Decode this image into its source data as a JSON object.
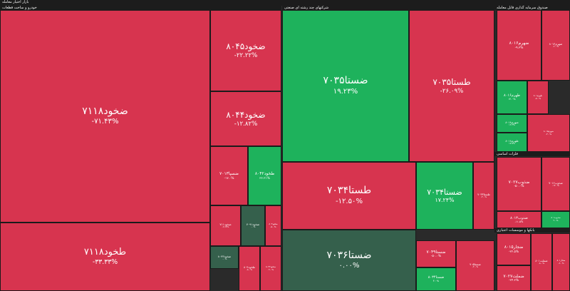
{
  "header": {
    "title": "بازار اختیار معامله"
  },
  "colors": {
    "down": "#d7344f",
    "up": "#1eb25c",
    "flat": "#35604c"
  },
  "groups": [
    {
      "title": "خودرو و ساخت قطعات",
      "tiles": [
        {
          "label": "ضخود۷۱۱۸",
          "change": "-۷۱.۴۳%",
          "color": "down"
        },
        {
          "label": "طخود۷۱۱۸",
          "change": "-۳۳.۳۳%",
          "color": "down"
        },
        {
          "label": "ضخود۸۰۴۵",
          "change": "-۲۲.۲۲%",
          "color": "down"
        },
        {
          "label": "ضخود۸۰۴۴",
          "change": "-۱۲.۸۲%",
          "color": "down"
        },
        {
          "label": "ضسپا۷۰۱۳",
          "change": "-۱۷.۰%",
          "color": "down"
        },
        {
          "label": "طخود۸۰۴۲",
          "change": "۳۶.۲۱%",
          "color": "up"
        },
        {
          "label": "ضخود۷۱۱",
          "change": "-۶.۶۷%",
          "color": "down"
        },
        {
          "label": "ضخود۷۰۹۱",
          "change": "۰.۰%",
          "color": "flat"
        },
        {
          "label": "ضخود۸۰۳",
          "change": "-۵.۰%",
          "color": "down"
        },
        {
          "label": "ضخود۸۰۴۳",
          "change": "۰.۰%",
          "color": "flat"
        },
        {
          "label": "طخود۸۰۴",
          "change": "-۸.۰%",
          "color": "down"
        },
        {
          "label": "ضخود۸۰۴۲",
          "change": "-۹.۰%",
          "color": "down"
        }
      ]
    },
    {
      "title": "شرکتهای چند رشته ای صنعتی",
      "tiles": [
        {
          "label": "ضستا۷۰۳۵",
          "change": "۱۹.۲۳%",
          "color": "up"
        },
        {
          "label": "طستا۷۰۳۵",
          "change": "-۲۶.۰۹%",
          "color": "down"
        },
        {
          "label": "طستا۷۰۳۴",
          "change": "-۱۲.۵۰%",
          "color": "down"
        },
        {
          "label": "ضستا۷۰۳۴",
          "change": "۱۷.۲۴%",
          "color": "up"
        },
        {
          "label": "طستا۷۰۳۳",
          "change": "-۳.۰%",
          "color": "down"
        },
        {
          "label": "ضستا۷۰۳۶",
          "change": "۰.۰۰%",
          "color": "flat"
        },
        {
          "label": "ضستا۷۰۴۹",
          "change": "-۵۰.۰%",
          "color": "down"
        },
        {
          "label": "ضستا۸۰۳۴",
          "change": "۳.۰%",
          "color": "up"
        },
        {
          "label": "ضستا۷۰۵",
          "change": "-۴.۰%",
          "color": "down"
        }
      ]
    },
    {
      "title": "صندوق سرمایه گذاری قابل معامله",
      "tiles": [
        {
          "label": "ضهرم۸۰۱۶",
          "change": "-۹.۳%",
          "color": "down"
        },
        {
          "label": "ضهرم۸۰۱۴",
          "change": "-۶.۰%",
          "color": "down"
        },
        {
          "label": "طهرم۸۰۱۶",
          "change": "۱۲.۰%",
          "color": "up"
        },
        {
          "label": "طهرم۸۰۱",
          "change": "-۵.۰%",
          "color": "down"
        },
        {
          "label": "ضهرم۸۰۱۸",
          "change": "۱۴.۴%",
          "color": "up"
        },
        {
          "label": "طهرم۸۰۱۸",
          "change": "۱۷.۵%",
          "color": "up"
        },
        {
          "label": "ضهرم۸۰۱۵",
          "change": "-۳.۰%",
          "color": "down"
        }
      ]
    },
    {
      "title": "فلزات اساسی",
      "tiles": [
        {
          "label": "ضذوب۷۰۲۷",
          "change": "-۵۰.۰%",
          "color": "down"
        },
        {
          "label": "ضذوب۷۰۱۶",
          "change": "-۱۴.۰%",
          "color": "down"
        },
        {
          "label": "ضذوب۸۰۱۳",
          "change": "-۱۱.۵%",
          "color": "down"
        },
        {
          "label": "ضذوب۸۰۱",
          "change": "۲.۰%",
          "color": "up"
        }
      ]
    },
    {
      "title": "بانکها و موسسات اعتباری",
      "tiles": [
        {
          "label": "ضجار۸۰۱۵",
          "change": "-۲۲.۵%",
          "color": "down"
        },
        {
          "label": "ضملت۷۰۲۷",
          "change": "-۲۴.۳%",
          "color": "down"
        },
        {
          "label": "ضملت۸۰۱",
          "change": "-۸.۰%",
          "color": "down"
        },
        {
          "label": "ضجار۸۰۱",
          "change": "-۶.۰%",
          "color": "down"
        }
      ]
    }
  ]
}
